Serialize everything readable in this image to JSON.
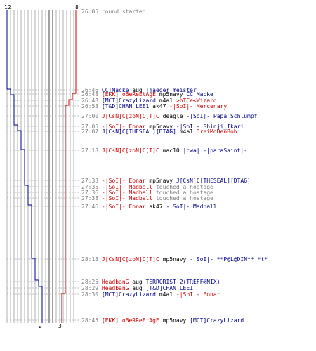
{
  "colors": {
    "team_a": "#000088",
    "team_b": "#cc0000",
    "lane": "#b0b0b0",
    "time": "#808080"
  },
  "counts": {
    "blue_start": "12",
    "red_start": "8",
    "blue_end": "2",
    "red_end": "3"
  },
  "events": [
    {
      "time": "26:05",
      "parts": [
        {
          "c": "gray",
          "t": "round started"
        }
      ]
    },
    {
      "time": "26:46",
      "parts": [
        {
          "c": "blue",
          "t": "CC|Macke"
        },
        {
          "c": "blk",
          "t": " aug "
        },
        {
          "c": "blue",
          "t": "|jaeger|meister"
        }
      ]
    },
    {
      "time": "26:48",
      "parts": [
        {
          "c": "red",
          "t": "[EKK] oBeReEtAgE"
        },
        {
          "c": "blk",
          "t": " mp5navy "
        },
        {
          "c": "blue",
          "t": "CC|Macke"
        }
      ]
    },
    {
      "time": "26:48",
      "parts": [
        {
          "c": "blue",
          "t": "[MCT]CrazyLizard"
        },
        {
          "c": "blk",
          "t": " m4a1 "
        },
        {
          "c": "red",
          "t": ">bTCe<Wizard"
        }
      ]
    },
    {
      "time": "26:53",
      "parts": [
        {
          "c": "blue",
          "t": "[T&D]CHAN LEE1"
        },
        {
          "c": "blk",
          "t": " ak47 "
        },
        {
          "c": "red",
          "t": "-|SoI|- Mercenary"
        }
      ]
    },
    {
      "time": "27:00",
      "parts": [
        {
          "c": "red",
          "t": "J[CsN]C[zoN]C[T]C"
        },
        {
          "c": "blk",
          "t": " deagle "
        },
        {
          "c": "blue",
          "t": "-|SoI|- Papa Schlumpf"
        }
      ]
    },
    {
      "time": "27:05",
      "parts": [
        {
          "c": "red",
          "t": "-|SoI|- Eonar"
        },
        {
          "c": "blk",
          "t": " mp5navy "
        },
        {
          "c": "blue",
          "t": "-|SoI|- Shinji_Ikari"
        }
      ]
    },
    {
      "time": "27:07",
      "parts": [
        {
          "c": "blue",
          "t": "J[CsN]C[THESEAL][DTAG]"
        },
        {
          "c": "blk",
          "t": " m4a1 "
        },
        {
          "c": "red",
          "t": "DreiMoDenBob"
        }
      ]
    },
    {
      "time": "27:18",
      "parts": [
        {
          "c": "red",
          "t": "J[CsN]C[zoN]C[T]C"
        },
        {
          "c": "blk",
          "t": " mac10 "
        },
        {
          "c": "blue",
          "t": "|cwa| -|paraSaint|-"
        }
      ]
    },
    {
      "time": "27:33",
      "parts": [
        {
          "c": "red",
          "t": "-|SoI|- Eonar"
        },
        {
          "c": "blk",
          "t": " mp5navy "
        },
        {
          "c": "blue",
          "t": "J[CsN]C[THESEAL][DTAG]"
        }
      ]
    },
    {
      "time": "27:35",
      "parts": [
        {
          "c": "red",
          "t": "-|SoI|- Madball"
        },
        {
          "c": "gray",
          "t": " touched a hostage"
        }
      ]
    },
    {
      "time": "27:36",
      "parts": [
        {
          "c": "red",
          "t": "-|SoI|- Madball"
        },
        {
          "c": "gray",
          "t": " touched a hostage"
        }
      ]
    },
    {
      "time": "27:38",
      "parts": [
        {
          "c": "red",
          "t": "-|SoI|- Madball"
        },
        {
          "c": "gray",
          "t": " touched a hostage"
        }
      ]
    },
    {
      "time": "27:46",
      "parts": [
        {
          "c": "red",
          "t": "-|SoI|- Eonar"
        },
        {
          "c": "blk",
          "t": " ak47 "
        },
        {
          "c": "blue",
          "t": "-|SoI|- Madball"
        }
      ]
    },
    {
      "time": "28:13",
      "parts": [
        {
          "c": "red",
          "t": "J[CsN]C[zoN]C[T]C"
        },
        {
          "c": "blk",
          "t": " mp5navy "
        },
        {
          "c": "blue",
          "t": "-|SoI|- **P@L@DIN** *t*"
        }
      ]
    },
    {
      "time": "28:25",
      "parts": [
        {
          "c": "red",
          "t": "HeadbanG"
        },
        {
          "c": "blk",
          "t": " aug "
        },
        {
          "c": "blue",
          "t": "TERRORIST-2(TREFF@NIX)"
        }
      ]
    },
    {
      "time": "28:29",
      "parts": [
        {
          "c": "red",
          "t": "HeadbanG"
        },
        {
          "c": "blk",
          "t": " aug "
        },
        {
          "c": "blue",
          "t": "[T&D]CHAN LEE1"
        }
      ]
    },
    {
      "time": "28:30",
      "parts": [
        {
          "c": "blue",
          "t": "[MCT]CrazyLizard"
        },
        {
          "c": "blk",
          "t": " m4a1 "
        },
        {
          "c": "red",
          "t": "-|SoI|- Eonar"
        }
      ]
    },
    {
      "time": "28:45",
      "parts": [
        {
          "c": "red",
          "t": "[EKK] oBeRReEtAgE"
        },
        {
          "c": "blk",
          "t": " mp5navy "
        },
        {
          "c": "blue",
          "t": "[MCT]CrazyLizard"
        }
      ]
    }
  ]
}
